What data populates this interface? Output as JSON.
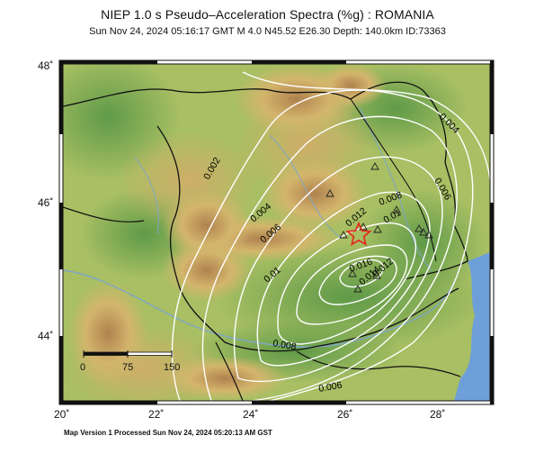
{
  "title": "NIEP 1.0 s Pseudo–Acceleration Spectra (%g) : ROMANIA",
  "subtitle": "Sun Nov 24, 2024 05:16:17 GMT   M 4.0   N45.52 E26.30   Depth: 140.0km   ID:73363",
  "footer": "Map Version 1 Processed Sun Nov 24, 2024 05:20:13 AM GST",
  "axes": {
    "lat_labels": [
      "48˚",
      "46˚",
      "44˚"
    ],
    "lon_labels": [
      "20˚",
      "22˚",
      "24˚",
      "26˚",
      "28˚"
    ]
  },
  "scale_bar": {
    "labels": [
      "0",
      "75",
      "150"
    ]
  },
  "contour_labels": [
    "0.002",
    "0.004",
    "0.004",
    "0.006",
    "0.006",
    "0.006",
    "0.008",
    "0.008",
    "0.01",
    "0.01",
    "0.012",
    "0.012",
    "0.014",
    "0.016"
  ],
  "epicenter": {
    "symbol": "star-icon",
    "color": "#e03020"
  },
  "stations": {
    "symbol": "triangle-icon",
    "count": 12
  },
  "colors": {
    "land_low": "#7fae56",
    "land_mid": "#d9c77a",
    "land_high": "#b88a55",
    "water": "#6f9fd8",
    "contour": "#ffffff"
  }
}
